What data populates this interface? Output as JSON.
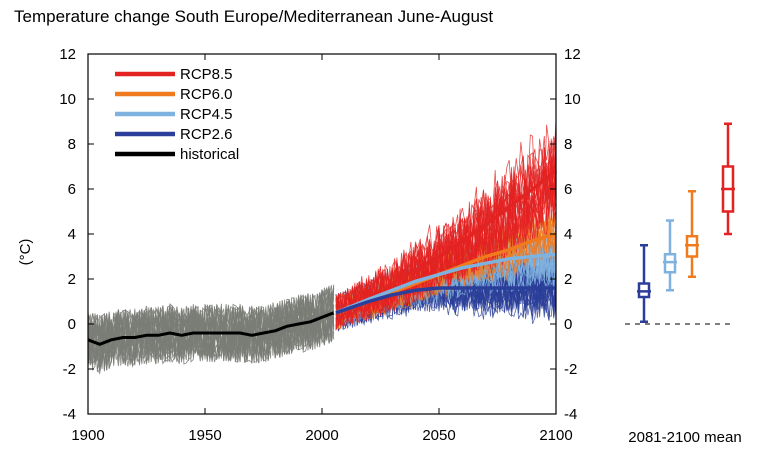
{
  "title": "Temperature change South Europe/Mediterranean June-August",
  "chart_data": {
    "type": "line",
    "title": "Temperature change South Europe/Mediterranean June-August",
    "ylabel": "(°C)",
    "xlabel": "",
    "xlim": [
      1900,
      2100
    ],
    "ylim": [
      -4,
      12
    ],
    "x_ticks": [
      1900,
      1950,
      2000,
      2050,
      2100
    ],
    "y_ticks": [
      -4,
      -2,
      0,
      2,
      4,
      6,
      8,
      10,
      12
    ],
    "right_axis_ticks": [
      -4,
      -2,
      0,
      2,
      4,
      6,
      8,
      10,
      12
    ],
    "grid": false,
    "legend_position": "top-left",
    "series": [
      {
        "name": "RCP8.5",
        "color": "#e32222",
        "x": [
          2030,
          2040,
          2050,
          2060,
          2070,
          2080,
          2090,
          2100
        ],
        "values": [
          1.8,
          2.4,
          3.0,
          3.7,
          4.4,
          5.2,
          6.0,
          6.8
        ]
      },
      {
        "name": "RCP6.0",
        "color": "#f07b1f",
        "x": [
          2006,
          2020,
          2030,
          2040,
          2050,
          2060,
          2070,
          2080,
          2090,
          2100
        ],
        "values": [
          0.5,
          1.0,
          1.4,
          1.8,
          2.2,
          2.6,
          3.0,
          3.3,
          3.7,
          4.0
        ]
      },
      {
        "name": "RCP4.5",
        "color": "#7fb2df",
        "x": [
          2006,
          2020,
          2030,
          2040,
          2050,
          2060,
          2070,
          2080,
          2090,
          2100
        ],
        "values": [
          0.5,
          1.1,
          1.5,
          1.9,
          2.2,
          2.5,
          2.7,
          2.9,
          3.0,
          3.1
        ]
      },
      {
        "name": "RCP2.6",
        "color": "#2b3e99",
        "x": [
          2006,
          2020,
          2030,
          2040,
          2050,
          2060,
          2070,
          2080,
          2090,
          2100
        ],
        "values": [
          0.5,
          1.0,
          1.3,
          1.5,
          1.6,
          1.6,
          1.6,
          1.6,
          1.6,
          1.6
        ]
      },
      {
        "name": "historical",
        "color": "#000000",
        "x": [
          1900,
          1905,
          1910,
          1915,
          1920,
          1925,
          1930,
          1935,
          1940,
          1945,
          1950,
          1955,
          1960,
          1965,
          1970,
          1975,
          1980,
          1985,
          1990,
          1995,
          2000,
          2005
        ],
        "values": [
          -0.7,
          -0.9,
          -0.7,
          -0.6,
          -0.6,
          -0.5,
          -0.5,
          -0.4,
          -0.5,
          -0.4,
          -0.4,
          -0.4,
          -0.4,
          -0.4,
          -0.5,
          -0.4,
          -0.3,
          -0.1,
          0.0,
          0.1,
          0.3,
          0.5
        ]
      }
    ],
    "historical_ensemble_color": "#7a7c77",
    "ensemble_ranges": {
      "historical": {
        "x": [
          1900,
          2005
        ],
        "low": -2.5,
        "high": 1.2
      },
      "RCP8.5": {
        "x": [
          2020,
          2100
        ],
        "low_start": -0.5,
        "high_start": 3.5,
        "low_end": 4.0,
        "high_end": 10.8
      },
      "RCP2.6": {
        "x": [
          2006,
          2100
        ],
        "low_start": -1.8,
        "high_start": 2.6,
        "low_end": -0.9,
        "high_end": 5.0
      }
    },
    "mean_boxplots": {
      "label": "2081-2100 mean",
      "boxes": [
        {
          "series": "RCP2.6",
          "color": "#2b3e99",
          "min": 0.1,
          "q1": 1.2,
          "median": 1.45,
          "q3": 1.8,
          "max": 3.5
        },
        {
          "series": "RCP4.5",
          "color": "#7fb2df",
          "min": 1.5,
          "q1": 2.3,
          "median": 2.75,
          "q3": 3.1,
          "max": 4.6
        },
        {
          "series": "RCP6.0",
          "color": "#f07b1f",
          "min": 2.1,
          "q1": 3.0,
          "median": 3.5,
          "q3": 3.9,
          "max": 5.9
        },
        {
          "series": "RCP8.5",
          "color": "#e32222",
          "min": 4.0,
          "q1": 5.0,
          "median": 6.0,
          "q3": 7.0,
          "max": 8.9
        }
      ]
    }
  }
}
